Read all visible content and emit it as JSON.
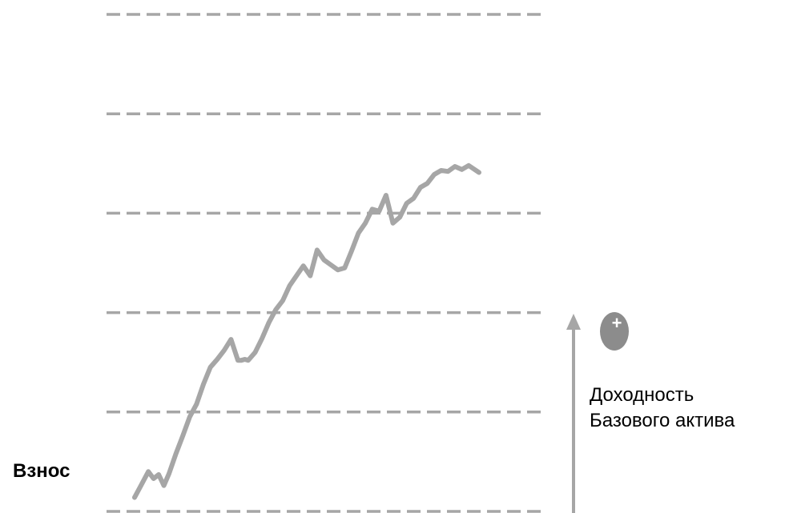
{
  "labels": {
    "start": "Взнос",
    "axis_line1": "Доходность",
    "axis_line2": "Базового актива",
    "plus_sign": "+"
  },
  "colors": {
    "grid": "#a6a6a6",
    "series": "#a6a6a6",
    "arrow": "#a6a6a6",
    "badge": "#8c8c8c"
  },
  "chart_data": {
    "type": "line",
    "title": "",
    "xlabel": "",
    "ylabel": "Доходность Базового актива",
    "grid": true,
    "ylim": [
      0,
      5
    ],
    "xlim": [
      0,
      1
    ],
    "gridlines_y": [
      0,
      1,
      2,
      3,
      4,
      5
    ],
    "series": [
      {
        "x": [
          0.0,
          0.02,
          0.04,
          0.055,
          0.07,
          0.085,
          0.1,
          0.12,
          0.14,
          0.16,
          0.18,
          0.2,
          0.22,
          0.24,
          0.26,
          0.28,
          0.3,
          0.31,
          0.32,
          0.33,
          0.35,
          0.37,
          0.39,
          0.41,
          0.43,
          0.45,
          0.47,
          0.49,
          0.51,
          0.53,
          0.55,
          0.57,
          0.59,
          0.61,
          0.63,
          0.65,
          0.67,
          0.69,
          0.71,
          0.73,
          0.75,
          0.77,
          0.79,
          0.81,
          0.83,
          0.85,
          0.87,
          0.89,
          0.91,
          0.93,
          0.95,
          0.97,
          1.0
        ],
        "y": [
          0.14,
          0.27,
          0.4,
          0.33,
          0.37,
          0.26,
          0.38,
          0.58,
          0.76,
          0.95,
          1.08,
          1.28,
          1.45,
          1.53,
          1.62,
          1.73,
          1.52,
          1.52,
          1.53,
          1.52,
          1.6,
          1.74,
          1.9,
          2.03,
          2.12,
          2.27,
          2.37,
          2.47,
          2.37,
          2.63,
          2.53,
          2.48,
          2.43,
          2.45,
          2.62,
          2.8,
          2.9,
          3.04,
          3.02,
          3.18,
          2.9,
          2.96,
          3.1,
          3.15,
          3.26,
          3.3,
          3.39,
          3.43,
          3.42,
          3.47,
          3.44,
          3.48,
          3.41
        ]
      }
    ]
  }
}
